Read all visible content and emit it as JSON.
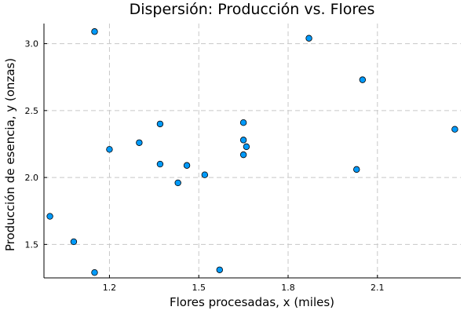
{
  "chart_data": {
    "type": "scatter",
    "title": "Dispersión: Producción vs. Flores",
    "xlabel": "Flores procesadas, x (miles)",
    "ylabel": "Producción de esencia, y (onzas)",
    "xlim": [
      0.98,
      2.38
    ],
    "ylim": [
      1.25,
      3.15
    ],
    "xticks": [
      1.2,
      1.5,
      1.8,
      2.1
    ],
    "xtick_labels": [
      "1.2",
      "1.5",
      "1.8",
      "2.1"
    ],
    "yticks": [
      1.5,
      2.0,
      2.5,
      3.0
    ],
    "ytick_labels": [
      "1.5",
      "2.0",
      "2.5",
      "3.0"
    ],
    "grid": true,
    "legend": "none",
    "point_color": "#009AFA",
    "point_edge_color": "#000000",
    "points": [
      {
        "x": 1.0,
        "y": 1.71
      },
      {
        "x": 1.08,
        "y": 1.52
      },
      {
        "x": 1.15,
        "y": 3.09
      },
      {
        "x": 1.15,
        "y": 1.29
      },
      {
        "x": 1.2,
        "y": 2.21
      },
      {
        "x": 1.3,
        "y": 2.26
      },
      {
        "x": 1.37,
        "y": 2.4
      },
      {
        "x": 1.37,
        "y": 2.1
      },
      {
        "x": 1.43,
        "y": 1.96
      },
      {
        "x": 1.46,
        "y": 2.09
      },
      {
        "x": 1.52,
        "y": 2.02
      },
      {
        "x": 1.57,
        "y": 1.31
      },
      {
        "x": 1.65,
        "y": 2.41
      },
      {
        "x": 1.65,
        "y": 2.28
      },
      {
        "x": 1.65,
        "y": 2.17
      },
      {
        "x": 1.66,
        "y": 2.23
      },
      {
        "x": 1.87,
        "y": 3.04
      },
      {
        "x": 2.03,
        "y": 2.06
      },
      {
        "x": 2.05,
        "y": 2.73
      },
      {
        "x": 2.36,
        "y": 2.36
      }
    ]
  }
}
